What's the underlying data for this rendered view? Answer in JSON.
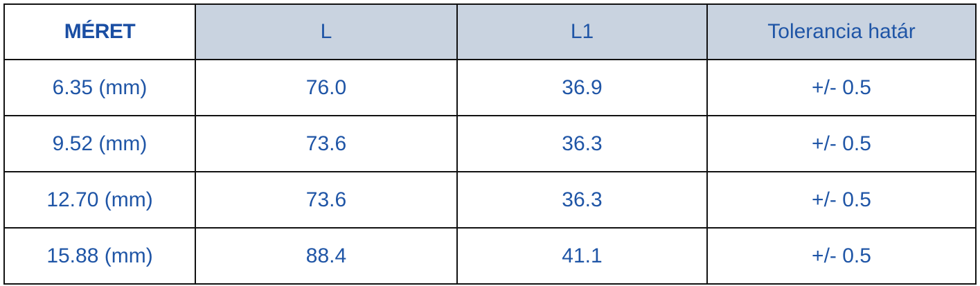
{
  "table": {
    "header": [
      "MÉRET",
      "L",
      "L1",
      "Tolerancia határ"
    ],
    "rows": [
      [
        "6.35 (mm)",
        "76.0",
        "36.9",
        "+/- 0.5"
      ],
      [
        "9.52 (mm)",
        "73.6",
        "36.3",
        "+/- 0.5"
      ],
      [
        "12.70 (mm)",
        "73.6",
        "36.3",
        "+/- 0.5"
      ],
      [
        "15.88 (mm)",
        "88.4",
        "41.1",
        "+/- 0.5"
      ]
    ]
  }
}
